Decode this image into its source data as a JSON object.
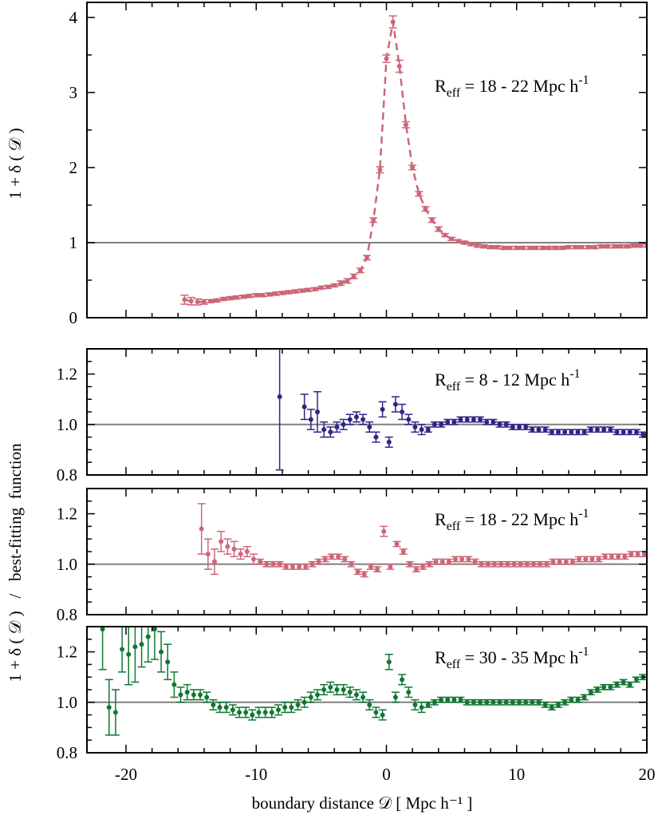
{
  "chart_data": {
    "type": "scatter",
    "x_range": [
      -23,
      20
    ],
    "x_ticks": [
      -20,
      -10,
      0,
      10,
      20
    ],
    "x_tick_labels": [
      "-20",
      "-10",
      "0",
      "10",
      "20"
    ],
    "xlabel": "boundary distance 𝒟 [ Mpc h⁻¹ ]",
    "ylabel_top": "1 + δ ( 𝒟 )",
    "ylabel_bottom": "1 + δ ( 𝒟 )   /   best-fitting  function",
    "reference_line": 1.0,
    "colors": {
      "R8_12": "#2e2585",
      "R18_22": "#cc6677",
      "R30_35": "#117733",
      "reference": "#808080"
    },
    "panels": [
      {
        "name": "density-profile",
        "ylim": [
          0,
          4.2
        ],
        "y_ticks": [
          0,
          1,
          2,
          3,
          4
        ],
        "y_tick_labels": [
          "0",
          "1",
          "2",
          "3",
          "4"
        ],
        "annotation": {
          "prefix": "R",
          "sub": "eff",
          "text": " = 18 - 22 Mpc h",
          "sup": "-1"
        },
        "series": [
          {
            "color": "#cc6677",
            "line": "dashed",
            "x": [
              -15.5,
              -15,
              -14.5,
              -14,
              -13.5,
              -13,
              -12.5,
              -12,
              -11.5,
              -11,
              -10.5,
              -10,
              -9.5,
              -9,
              -8.5,
              -8,
              -7.5,
              -7,
              -6.5,
              -6,
              -5.5,
              -5,
              -4.5,
              -4,
              -3.5,
              -3,
              -2.5,
              -2,
              -1.5,
              -1,
              -0.5,
              0,
              0.5,
              1,
              1.5,
              2,
              2.5,
              3,
              3.5,
              4,
              4.5,
              5,
              5.5,
              6,
              6.5,
              7,
              7.5,
              8,
              8.5,
              9,
              9.5,
              10,
              10.5,
              11,
              11.5,
              12,
              12.5,
              13,
              13.5,
              14,
              14.5,
              15,
              15.5,
              16,
              16.5,
              17,
              17.5,
              18,
              18.5,
              19,
              19.5,
              20
            ],
            "y": [
              0.24,
              0.22,
              0.21,
              0.21,
              0.22,
              0.23,
              0.25,
              0.26,
              0.27,
              0.28,
              0.29,
              0.3,
              0.3,
              0.31,
              0.32,
              0.33,
              0.34,
              0.35,
              0.36,
              0.37,
              0.38,
              0.4,
              0.41,
              0.43,
              0.46,
              0.49,
              0.55,
              0.63,
              0.8,
              1.3,
              1.97,
              3.45,
              3.94,
              3.35,
              2.57,
              2.0,
              1.65,
              1.45,
              1.3,
              1.18,
              1.1,
              1.05,
              1.02,
              1.0,
              0.98,
              0.96,
              0.95,
              0.94,
              0.94,
              0.93,
              0.93,
              0.93,
              0.93,
              0.93,
              0.93,
              0.93,
              0.93,
              0.93,
              0.93,
              0.94,
              0.94,
              0.94,
              0.94,
              0.94,
              0.95,
              0.95,
              0.95,
              0.95,
              0.95,
              0.96,
              0.96,
              0.96
            ],
            "err": [
              0.06,
              0.05,
              0.04,
              0.03,
              0.02,
              0.02,
              0.02,
              0.02,
              0.02,
              0.02,
              0.02,
              0.02,
              0.02,
              0.02,
              0.02,
              0.02,
              0.02,
              0.02,
              0.02,
              0.02,
              0.02,
              0.02,
              0.02,
              0.02,
              0.03,
              0.03,
              0.03,
              0.03,
              0.03,
              0.03,
              0.04,
              0.05,
              0.08,
              0.08,
              0.04,
              0.03,
              0.03,
              0.03,
              0.03,
              0.03,
              0.02,
              0.02,
              0.02,
              0.02,
              0.02,
              0.02,
              0.02,
              0.02,
              0.02,
              0.02,
              0.02,
              0.02,
              0.02,
              0.02,
              0.02,
              0.02,
              0.02,
              0.02,
              0.02,
              0.02,
              0.02,
              0.02,
              0.02,
              0.02,
              0.02,
              0.02,
              0.02,
              0.02,
              0.02,
              0.02,
              0.02,
              0.02
            ]
          }
        ]
      },
      {
        "name": "ratio-8-12",
        "ylim": [
          0.8,
          1.3
        ],
        "y_ticks": [
          0.8,
          1.0,
          1.2
        ],
        "y_tick_labels": [
          "0.8",
          "1.0",
          "1.2"
        ],
        "annotation": {
          "prefix": "R",
          "sub": "eff",
          "text": " =   8 - 12 Mpc h",
          "sup": "-1"
        },
        "series": [
          {
            "color": "#2e2585",
            "line": "none",
            "x": [
              -8.2,
              -6.3,
              -5.8,
              -5.3,
              -4.8,
              -4.3,
              -3.8,
              -3.3,
              -2.8,
              -2.3,
              -1.8,
              -1.3,
              -0.8,
              -0.3,
              0.2,
              0.7,
              1.2,
              1.7,
              2.2,
              2.7,
              3.2,
              3.7,
              4.2,
              4.7,
              5.2,
              5.7,
              6.2,
              6.7,
              7.2,
              7.7,
              8.2,
              8.7,
              9.2,
              9.7,
              10.2,
              10.7,
              11.2,
              11.7,
              12.2,
              12.7,
              13.2,
              13.7,
              14.2,
              14.7,
              15.2,
              15.7,
              16.2,
              16.7,
              17.2,
              17.7,
              18.2,
              18.7,
              19.2,
              19.7,
              20
            ],
            "y": [
              1.11,
              1.07,
              1.02,
              1.05,
              0.98,
              0.97,
              0.99,
              1.0,
              1.02,
              1.03,
              1.02,
              0.99,
              0.95,
              1.06,
              0.93,
              1.08,
              1.05,
              1.02,
              0.99,
              0.98,
              0.98,
              1.0,
              1.0,
              1.01,
              1.01,
              1.02,
              1.02,
              1.02,
              1.02,
              1.01,
              1.01,
              1.0,
              1.0,
              0.99,
              0.99,
              0.99,
              0.98,
              0.98,
              0.98,
              0.97,
              0.97,
              0.97,
              0.97,
              0.97,
              0.97,
              0.98,
              0.98,
              0.98,
              0.98,
              0.97,
              0.97,
              0.97,
              0.97,
              0.96,
              0.96
            ],
            "err": [
              0.29,
              0.05,
              0.04,
              0.08,
              0.03,
              0.02,
              0.02,
              0.02,
              0.02,
              0.02,
              0.02,
              0.02,
              0.02,
              0.03,
              0.02,
              0.03,
              0.03,
              0.02,
              0.02,
              0.02,
              0.01,
              0.01,
              0.01,
              0.01,
              0.01,
              0.01,
              0.01,
              0.01,
              0.01,
              0.01,
              0.01,
              0.01,
              0.01,
              0.01,
              0.01,
              0.01,
              0.01,
              0.01,
              0.01,
              0.01,
              0.01,
              0.01,
              0.01,
              0.01,
              0.01,
              0.01,
              0.01,
              0.01,
              0.01,
              0.01,
              0.01,
              0.01,
              0.01,
              0.01,
              0.01
            ]
          }
        ]
      },
      {
        "name": "ratio-18-22",
        "ylim": [
          0.8,
          1.3
        ],
        "y_ticks": [
          0.8,
          1.0,
          1.2
        ],
        "y_tick_labels": [
          "0.8",
          "1.0",
          "1.2"
        ],
        "annotation": {
          "prefix": "R",
          "sub": "eff",
          "text": " = 18 - 22 Mpc h",
          "sup": "-1"
        },
        "series": [
          {
            "color": "#cc6677",
            "line": "none",
            "x": [
              -14.2,
              -13.7,
              -13.2,
              -12.7,
              -12.2,
              -11.7,
              -11.2,
              -10.7,
              -10.2,
              -9.7,
              -9.2,
              -8.7,
              -8.2,
              -7.7,
              -7.2,
              -6.7,
              -6.2,
              -5.7,
              -5.2,
              -4.7,
              -4.2,
              -3.7,
              -3.2,
              -2.7,
              -2.2,
              -1.7,
              -1.2,
              -0.7,
              -0.2,
              0.3,
              0.8,
              1.3,
              1.8,
              2.3,
              2.8,
              3.3,
              3.8,
              4.3,
              4.8,
              5.3,
              5.8,
              6.3,
              6.8,
              7.3,
              7.8,
              8.3,
              8.8,
              9.3,
              9.8,
              10.3,
              10.8,
              11.3,
              11.8,
              12.3,
              12.8,
              13.3,
              13.8,
              14.3,
              14.8,
              15.3,
              15.8,
              16.3,
              16.8,
              17.3,
              17.8,
              18.3,
              18.8,
              19.3,
              19.8
            ],
            "y": [
              1.14,
              1.04,
              1.01,
              1.09,
              1.07,
              1.06,
              1.04,
              1.05,
              1.02,
              1.01,
              1.0,
              1.0,
              1.0,
              0.99,
              0.99,
              0.99,
              0.99,
              1.0,
              1.01,
              1.02,
              1.03,
              1.03,
              1.02,
              1.0,
              0.97,
              0.96,
              0.99,
              0.98,
              1.13,
              0.99,
              1.08,
              1.05,
              1.0,
              0.98,
              0.99,
              1.0,
              1.01,
              1.01,
              1.01,
              1.02,
              1.02,
              1.02,
              1.01,
              1.0,
              1.0,
              1.0,
              1.0,
              1.0,
              1.0,
              1.0,
              1.0,
              1.0,
              1.0,
              1.0,
              1.01,
              1.01,
              1.01,
              1.01,
              1.02,
              1.02,
              1.02,
              1.02,
              1.03,
              1.03,
              1.03,
              1.03,
              1.04,
              1.04,
              1.04
            ],
            "err": [
              0.1,
              0.06,
              0.05,
              0.04,
              0.03,
              0.03,
              0.02,
              0.02,
              0.02,
              0.01,
              0.01,
              0.01,
              0.01,
              0.01,
              0.01,
              0.01,
              0.01,
              0.01,
              0.01,
              0.01,
              0.01,
              0.01,
              0.01,
              0.01,
              0.01,
              0.01,
              0.01,
              0.01,
              0.02,
              0.01,
              0.01,
              0.01,
              0.01,
              0.01,
              0.01,
              0.01,
              0.01,
              0.01,
              0.01,
              0.01,
              0.01,
              0.01,
              0.01,
              0.01,
              0.01,
              0.01,
              0.01,
              0.01,
              0.01,
              0.01,
              0.01,
              0.01,
              0.01,
              0.01,
              0.01,
              0.01,
              0.01,
              0.01,
              0.01,
              0.01,
              0.01,
              0.01,
              0.01,
              0.01,
              0.01,
              0.01,
              0.01,
              0.01,
              0.01
            ]
          }
        ]
      },
      {
        "name": "ratio-30-35",
        "ylim": [
          0.8,
          1.3
        ],
        "y_ticks": [
          0.8,
          1.0,
          1.2
        ],
        "y_tick_labels": [
          "0.8",
          "1.0",
          "1.2"
        ],
        "annotation": {
          "prefix": "R",
          "sub": "eff",
          "text": " = 30 - 35 Mpc h",
          "sup": "-1"
        },
        "series": [
          {
            "color": "#117733",
            "line": "none",
            "x": [
              -21.8,
              -21.3,
              -20.8,
              -20.3,
              -19.8,
              -19.3,
              -18.8,
              -18.3,
              -17.8,
              -17.3,
              -16.8,
              -16.3,
              -15.8,
              -15.3,
              -14.8,
              -14.3,
              -13.8,
              -13.3,
              -12.8,
              -12.3,
              -11.8,
              -11.3,
              -10.8,
              -10.3,
              -9.8,
              -9.3,
              -8.8,
              -8.3,
              -7.8,
              -7.3,
              -6.8,
              -6.3,
              -5.8,
              -5.3,
              -4.8,
              -4.3,
              -3.8,
              -3.3,
              -2.8,
              -2.3,
              -1.8,
              -1.3,
              -0.8,
              -0.3,
              0.2,
              0.7,
              1.2,
              1.7,
              2.2,
              2.7,
              3.2,
              3.7,
              4.2,
              4.7,
              5.2,
              5.7,
              6.2,
              6.7,
              7.2,
              7.7,
              8.2,
              8.7,
              9.2,
              9.7,
              10.2,
              10.7,
              11.2,
              11.7,
              12.2,
              12.7,
              13.2,
              13.7,
              14.2,
              14.7,
              15.2,
              15.7,
              16.2,
              16.7,
              17.2,
              17.7,
              18.2,
              18.7,
              19.2,
              19.7
            ],
            "y": [
              1.29,
              0.98,
              0.96,
              1.21,
              1.19,
              1.22,
              1.23,
              1.26,
              1.29,
              1.2,
              1.16,
              1.07,
              1.03,
              1.04,
              1.03,
              1.03,
              1.02,
              0.99,
              0.98,
              0.98,
              0.97,
              0.96,
              0.96,
              0.95,
              0.96,
              0.96,
              0.96,
              0.97,
              0.98,
              0.98,
              0.99,
              1.0,
              1.02,
              1.03,
              1.05,
              1.06,
              1.05,
              1.05,
              1.04,
              1.03,
              1.02,
              0.99,
              0.96,
              0.95,
              1.16,
              1.02,
              1.09,
              1.04,
              0.99,
              0.98,
              0.99,
              1.0,
              1.01,
              1.01,
              1.01,
              1.01,
              1.0,
              1.0,
              1.0,
              1.0,
              1.0,
              1.0,
              1.0,
              1.0,
              1.0,
              1.0,
              1.0,
              1.0,
              0.99,
              0.98,
              0.99,
              1.0,
              1.01,
              1.01,
              1.02,
              1.04,
              1.05,
              1.06,
              1.06,
              1.07,
              1.08,
              1.07,
              1.09,
              1.1
            ],
            "err": [
              0.16,
              0.11,
              0.09,
              0.09,
              0.12,
              0.14,
              0.09,
              0.1,
              0.12,
              0.08,
              0.07,
              0.05,
              0.03,
              0.03,
              0.02,
              0.02,
              0.02,
              0.02,
              0.02,
              0.02,
              0.02,
              0.02,
              0.02,
              0.02,
              0.02,
              0.02,
              0.02,
              0.02,
              0.02,
              0.02,
              0.02,
              0.02,
              0.02,
              0.02,
              0.02,
              0.02,
              0.02,
              0.02,
              0.02,
              0.02,
              0.02,
              0.02,
              0.02,
              0.02,
              0.03,
              0.02,
              0.02,
              0.02,
              0.02,
              0.02,
              0.01,
              0.01,
              0.01,
              0.01,
              0.01,
              0.01,
              0.01,
              0.01,
              0.01,
              0.01,
              0.01,
              0.01,
              0.01,
              0.01,
              0.01,
              0.01,
              0.01,
              0.01,
              0.01,
              0.01,
              0.01,
              0.01,
              0.01,
              0.01,
              0.01,
              0.01,
              0.01,
              0.01,
              0.01,
              0.01,
              0.01,
              0.01,
              0.01,
              0.01
            ]
          }
        ]
      }
    ]
  }
}
